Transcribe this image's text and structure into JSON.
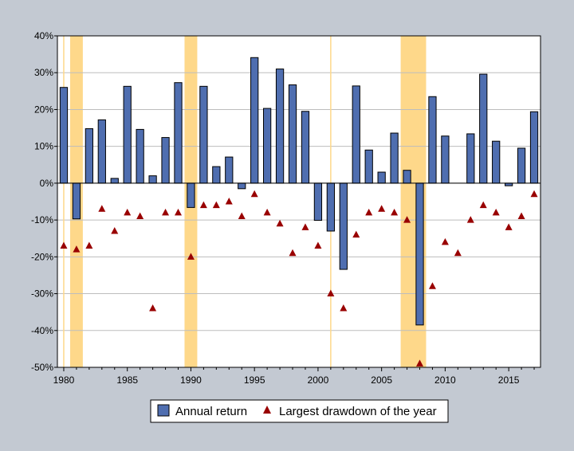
{
  "chart_data": {
    "type": "bar",
    "title": "",
    "xlabel": "",
    "ylabel": "",
    "x": [
      1980,
      1981,
      1982,
      1983,
      1984,
      1985,
      1986,
      1987,
      1988,
      1989,
      1990,
      1991,
      1992,
      1993,
      1994,
      1995,
      1996,
      1997,
      1998,
      1999,
      2000,
      2001,
      2002,
      2003,
      2004,
      2005,
      2006,
      2007,
      2008,
      2009,
      2010,
      2011,
      2012,
      2013,
      2014,
      2015,
      2016,
      2017
    ],
    "series": [
      {
        "name": "Annual return",
        "type": "bar",
        "color": "#4f6eb0",
        "values": [
          26.0,
          -9.7,
          14.8,
          17.2,
          1.3,
          26.3,
          14.6,
          2.0,
          12.4,
          27.3,
          -6.6,
          26.3,
          4.5,
          7.1,
          -1.5,
          34.1,
          20.3,
          31.0,
          26.7,
          19.5,
          -10.1,
          -13.0,
          -23.4,
          26.4,
          9.0,
          3.0,
          13.6,
          3.5,
          -38.5,
          23.5,
          12.8,
          0.0,
          13.4,
          29.6,
          11.4,
          -0.7,
          9.5,
          19.4
        ]
      },
      {
        "name": "Largest drawdown of the year",
        "type": "scatter",
        "color": "#990000",
        "values": [
          -17,
          -18,
          -17,
          -7,
          -13,
          -8,
          -9,
          -34,
          -8,
          -8,
          -20,
          -6,
          -6,
          -5,
          -9,
          -3,
          -8,
          -11,
          -19,
          -12,
          -17,
          -30,
          -34,
          -14,
          -8,
          -7,
          -8,
          -10,
          -49,
          -28,
          -16,
          -19,
          -10,
          -6,
          -8,
          -12,
          -9,
          -3
        ]
      }
    ],
    "ylim": [
      -50,
      40
    ],
    "xlim": [
      1979.5,
      2017.5
    ],
    "yticks": [
      "40%",
      "30%",
      "20%",
      "10%",
      "0%",
      "-10%",
      "-20%",
      "-30%",
      "-40%",
      "-50%"
    ],
    "ytick_values": [
      40,
      30,
      20,
      10,
      0,
      -10,
      -20,
      -30,
      -40,
      -50
    ],
    "xticks": [
      "1980",
      "1985",
      "1990",
      "1995",
      "2000",
      "2005",
      "2010",
      "2015"
    ],
    "xtick_values": [
      1980,
      1985,
      1990,
      1995,
      2000,
      2005,
      2010,
      2015
    ],
    "shaded_periods": [
      [
        1981,
        1982
      ],
      [
        1990,
        1991
      ],
      [
        2007,
        2009
      ]
    ],
    "vertical_lines": [
      1980,
      2001
    ],
    "grid": true,
    "legend_position": "bottom-center",
    "colors": {
      "background": "#c3c9d2",
      "plot_background": "#ffffff",
      "grid": "#bdbdbd",
      "shade": "#fed88a",
      "bar_edge": "#000000"
    }
  }
}
